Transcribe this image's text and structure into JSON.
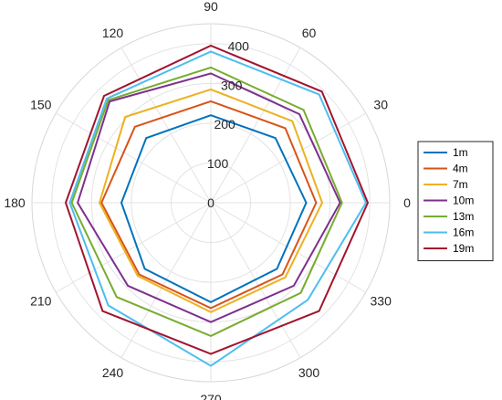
{
  "chart_data": {
    "type": "polar-line",
    "title": "",
    "angle_ticks": [
      0,
      30,
      60,
      90,
      120,
      150,
      180,
      210,
      240,
      270,
      300,
      330
    ],
    "angle_tick_labels": [
      "0",
      "30",
      "60",
      "90",
      "120",
      "150",
      "180",
      "210",
      "240",
      "270",
      "300",
      "330"
    ],
    "radial_ticks": [
      0,
      100,
      200,
      300,
      400
    ],
    "radial_tick_labels": [
      "0",
      "100",
      "200",
      "300",
      "400"
    ],
    "rlim": [
      0,
      450
    ],
    "grid": true,
    "legend_position": "right",
    "theta": [
      0,
      45,
      90,
      135,
      180,
      225,
      270,
      315
    ],
    "series": [
      {
        "name": "1m",
        "color": "#0072BD",
        "values": [
          240,
          230,
          220,
          230,
          225,
          235,
          250,
          235
        ]
      },
      {
        "name": "4m",
        "color": "#D95319",
        "values": [
          265,
          265,
          255,
          270,
          275,
          255,
          265,
          255
        ]
      },
      {
        "name": "7m",
        "color": "#EDB120",
        "values": [
          280,
          290,
          285,
          305,
          280,
          260,
          275,
          265
        ]
      },
      {
        "name": "10m",
        "color": "#7E2F8E",
        "values": [
          325,
          315,
          325,
          360,
          335,
          295,
          300,
          295
        ]
      },
      {
        "name": "13m",
        "color": "#77AC30",
        "values": [
          330,
          330,
          340,
          365,
          350,
          335,
          335,
          320
        ]
      },
      {
        "name": "16m",
        "color": "#4DBEEE",
        "values": [
          390,
          385,
          380,
          370,
          355,
          365,
          410,
          345
        ]
      },
      {
        "name": "19m",
        "color": "#A2142F",
        "values": [
          395,
          395,
          395,
          380,
          365,
          385,
          380,
          385
        ]
      }
    ]
  }
}
